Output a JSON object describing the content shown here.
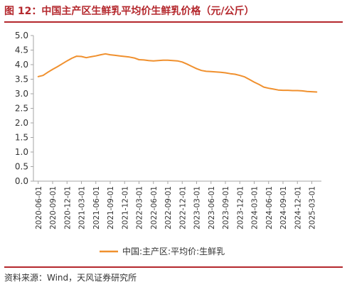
{
  "header": {
    "title": "图 12：中国主产区生鲜乳平均价生鲜乳价格（元/公斤）"
  },
  "footer": {
    "source": "资料来源：Wind，天风证券研究所"
  },
  "colors": {
    "accent": "#b4282d",
    "series": "#f0902e",
    "axis": "#a6a6a6"
  },
  "chart_data": {
    "type": "line",
    "title": "图 12：中国主产区生鲜乳平均价生鲜乳价格（元/公斤）",
    "xlabel": "",
    "ylabel": "",
    "ylim": [
      0,
      5
    ],
    "yticks": [
      "0.0",
      "0.5",
      "1.0",
      "1.5",
      "2.0",
      "2.5",
      "3.0",
      "3.5",
      "4.0",
      "4.5",
      "5.0"
    ],
    "xtick_labels": [
      "2020-06-01",
      "2020-09-01",
      "2020-12-01",
      "2021-03-01",
      "2021-06-01",
      "2021-09-01",
      "2021-12-01",
      "2022-03-01",
      "2022-06-01",
      "2022-09-01",
      "2022-12-01",
      "2023-03-01",
      "2023-06-01",
      "2023-09-01",
      "2023-12-01",
      "2024-03-01",
      "2024-06-01",
      "2024-09-01",
      "2024-12-01",
      "2025-03-01"
    ],
    "grid": false,
    "legend_position": "bottom",
    "series": [
      {
        "name": "中国:主产区:平均价:生鲜乳",
        "color": "#f0902e",
        "x": [
          "2020-06-01",
          "2020-07-01",
          "2020-08-01",
          "2020-09-01",
          "2020-10-01",
          "2020-11-01",
          "2020-12-01",
          "2021-01-01",
          "2021-02-01",
          "2021-03-01",
          "2021-04-01",
          "2021-05-01",
          "2021-06-01",
          "2021-07-01",
          "2021-08-01",
          "2021-09-01",
          "2021-10-01",
          "2021-11-01",
          "2021-12-01",
          "2022-01-01",
          "2022-02-01",
          "2022-03-01",
          "2022-04-01",
          "2022-05-01",
          "2022-06-01",
          "2022-07-01",
          "2022-08-01",
          "2022-09-01",
          "2022-10-01",
          "2022-11-01",
          "2022-12-01",
          "2023-01-01",
          "2023-02-01",
          "2023-03-01",
          "2023-04-01",
          "2023-05-01",
          "2023-06-01",
          "2023-07-01",
          "2023-08-01",
          "2023-09-01",
          "2023-10-01",
          "2023-11-01",
          "2023-12-01",
          "2024-01-01",
          "2024-02-01",
          "2024-03-01",
          "2024-04-01",
          "2024-05-01",
          "2024-06-01",
          "2024-07-01",
          "2024-08-01",
          "2024-09-01",
          "2024-10-01",
          "2024-11-01",
          "2024-12-01",
          "2025-01-01",
          "2025-02-01",
          "2025-03-01",
          "2025-04-01"
        ],
        "values": [
          3.59,
          3.63,
          3.74,
          3.84,
          3.93,
          4.03,
          4.13,
          4.22,
          4.29,
          4.28,
          4.24,
          4.27,
          4.3,
          4.34,
          4.37,
          4.34,
          4.32,
          4.3,
          4.28,
          4.26,
          4.23,
          4.17,
          4.16,
          4.14,
          4.13,
          4.14,
          4.15,
          4.15,
          4.14,
          4.13,
          4.09,
          4.02,
          3.94,
          3.86,
          3.8,
          3.77,
          3.76,
          3.75,
          3.74,
          3.72,
          3.69,
          3.67,
          3.63,
          3.58,
          3.49,
          3.4,
          3.32,
          3.23,
          3.19,
          3.16,
          3.13,
          3.12,
          3.12,
          3.11,
          3.11,
          3.1,
          3.08,
          3.07,
          3.06
        ]
      }
    ]
  }
}
